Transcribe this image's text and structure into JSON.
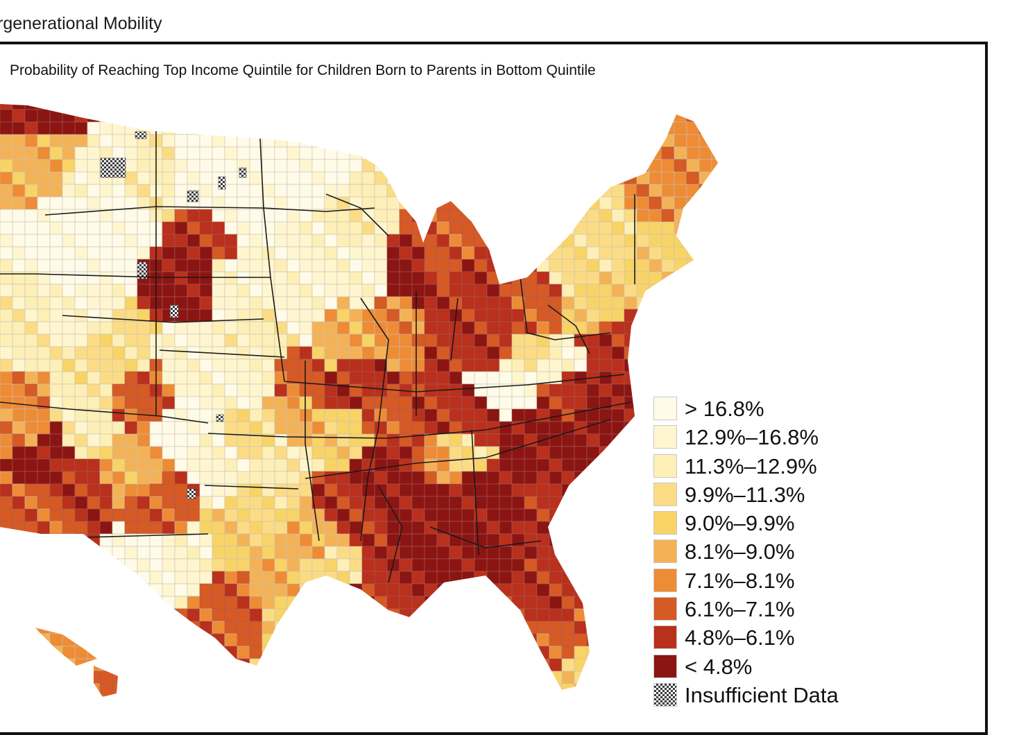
{
  "header": {
    "title": "rgenerational Mobility"
  },
  "map": {
    "subtitle": "Probability of Reaching Top Income Quintile for Children Born to Parents in Bottom Quintile",
    "legend": [
      {
        "label": "> 16.8%",
        "color": "#fffbe8",
        "level": 0
      },
      {
        "label": "12.9%–16.8%",
        "color": "#fff6cf",
        "level": 1
      },
      {
        "label": "11.3%–12.9%",
        "color": "#fdefb6",
        "level": 2
      },
      {
        "label": "9.9%–11.3%",
        "color": "#fbdc85",
        "level": 3
      },
      {
        "label": "9.0%–9.9%",
        "color": "#f8d366",
        "level": 4
      },
      {
        "label": "8.1%–9.0%",
        "color": "#f4b256",
        "level": 5
      },
      {
        "label": "7.1%–8.1%",
        "color": "#ee8b35",
        "level": 6
      },
      {
        "label": "6.1%–7.1%",
        "color": "#d65a24",
        "level": 7
      },
      {
        "label": "4.8%–6.1%",
        "color": "#b9301c",
        "level": 8
      },
      {
        "label": "< 4.8%",
        "color": "#8b1512",
        "level": 9
      },
      {
        "label": "Insufficient Data",
        "color": "hatch",
        "level": -1
      }
    ]
  }
}
